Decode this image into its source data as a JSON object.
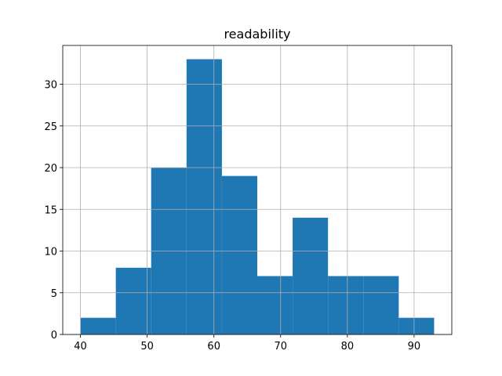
{
  "chart_data": {
    "type": "histogram",
    "title": "readability",
    "bins": [
      40,
      45.3,
      50.6,
      55.9,
      61.2,
      66.5,
      71.8,
      77.1,
      82.4,
      87.7,
      93
    ],
    "counts": [
      2,
      8,
      20,
      33,
      19,
      7,
      14,
      7,
      7,
      2
    ],
    "color": "#1f77b4",
    "xlim": [
      37.35,
      95.65
    ],
    "xticks": [
      40,
      50,
      60,
      70,
      80,
      90
    ],
    "ylim": [
      0,
      34.65
    ],
    "yticks": [
      0,
      5,
      10,
      15,
      20,
      25,
      30
    ],
    "grid": true
  }
}
